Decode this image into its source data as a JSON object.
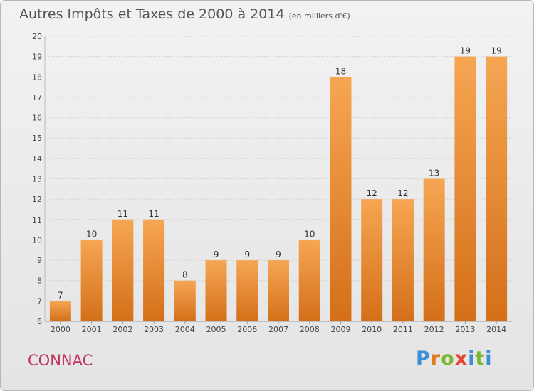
{
  "chart_data": {
    "type": "bar",
    "title": "Autres Impôts et Taxes de 2000 à 2014",
    "subtitle": "(en milliers d'€)",
    "categories": [
      "2000",
      "2001",
      "2002",
      "2003",
      "2004",
      "2005",
      "2006",
      "2007",
      "2008",
      "2009",
      "2010",
      "2011",
      "2012",
      "2013",
      "2014"
    ],
    "values": [
      7,
      10,
      11,
      11,
      8,
      9,
      9,
      9,
      10,
      18,
      12,
      12,
      13,
      19,
      19
    ],
    "ylim": [
      6,
      20
    ],
    "yticks": [
      6,
      7,
      8,
      9,
      10,
      11,
      12,
      13,
      14,
      15,
      16,
      17,
      18,
      19,
      20
    ],
    "grid": true,
    "bar_color": "#e8862e"
  },
  "footer": {
    "city": "CONNAC",
    "brand_letters": [
      "P",
      "r",
      "o",
      "x",
      "i",
      "t",
      "i"
    ]
  }
}
